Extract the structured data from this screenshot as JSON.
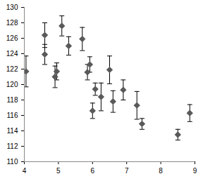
{
  "chart_data": {
    "type": "scatter",
    "marker": "diamond",
    "color": "#595959",
    "grid": false,
    "x": [
      4.05,
      4.6,
      4.6,
      4.9,
      4.95,
      5.1,
      5.3,
      5.7,
      5.85,
      5.92,
      6.0,
      6.08,
      6.25,
      6.5,
      6.6,
      6.9,
      7.3,
      7.45,
      8.5,
      8.85
    ],
    "values": [
      121.7,
      126.4,
      123.9,
      121.0,
      121.7,
      127.6,
      125.0,
      125.9,
      121.6,
      122.6,
      116.6,
      119.4,
      118.4,
      121.9,
      117.8,
      119.3,
      117.3,
      114.9,
      113.5,
      116.3
    ],
    "errors": [
      2.0,
      1.6,
      1.3,
      1.4,
      1.1,
      1.3,
      1.2,
      1.5,
      1.0,
      1.0,
      1.0,
      0.8,
      1.8,
      1.8,
      1.4,
      1.3,
      1.8,
      0.7,
      0.7,
      1.1
    ],
    "xlim": [
      4,
      9
    ],
    "xticks": [
      4,
      5,
      6,
      7,
      8,
      9
    ],
    "ylim": [
      110,
      130
    ],
    "yticks": [
      110,
      112,
      114,
      116,
      118,
      120,
      122,
      124,
      126,
      128,
      130
    ]
  }
}
